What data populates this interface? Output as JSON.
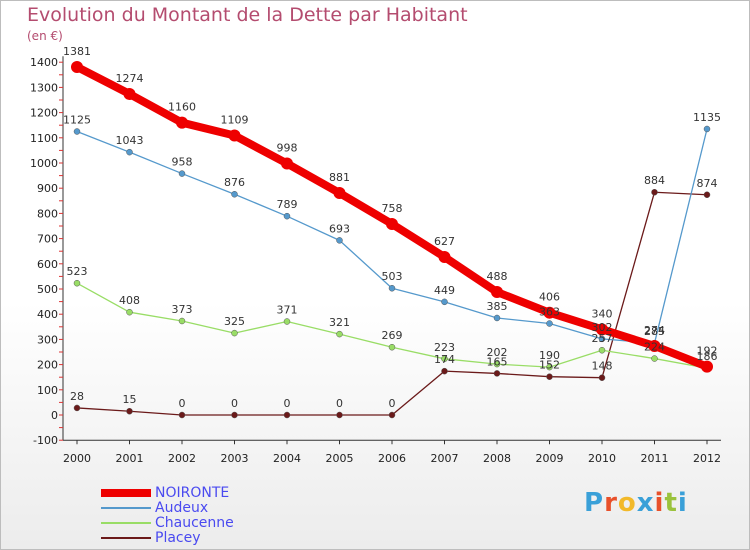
{
  "header": {
    "title": "Evolution du Montant de la Dette par Habitant",
    "unit": "(en €)"
  },
  "brand": {
    "letters": [
      "P",
      "r",
      "o",
      "x",
      "i",
      "t",
      "i"
    ],
    "colors": [
      "#3aa0d8",
      "#e8502a",
      "#f2b92a",
      "#3aa0d8",
      "#e8502a",
      "#9ac23c",
      "#3aa0d8"
    ]
  },
  "chart_data": {
    "type": "line",
    "title": "Evolution du Montant de la Dette par Habitant",
    "ylabel": "(en €)",
    "xlabel": "",
    "ylim": [
      -100,
      1400
    ],
    "y_ticks": [
      "-100",
      "0",
      "100",
      "200",
      "300",
      "400",
      "500",
      "600",
      "700",
      "800",
      "900",
      "1000",
      "1100",
      "1200",
      "1300",
      "1400"
    ],
    "y_tick_values": [
      -100,
      0,
      100,
      200,
      300,
      400,
      500,
      600,
      700,
      800,
      900,
      1000,
      1100,
      1200,
      1300,
      1400
    ],
    "categories": [
      "2000",
      "2001",
      "2002",
      "2003",
      "2004",
      "2005",
      "2006",
      "2007",
      "2008",
      "2009",
      "2010",
      "2011",
      "2012"
    ],
    "grid": false,
    "legend_position": "bottom-left",
    "series": [
      {
        "name": "Placey",
        "color": "#6b1a1a",
        "values": [
          28,
          15,
          0,
          0,
          0,
          0,
          0,
          174,
          165,
          152,
          148,
          884,
          874
        ]
      },
      {
        "name": "Chaucenne",
        "color": "#99dd66",
        "values": [
          523,
          408,
          373,
          325,
          371,
          321,
          269,
          223,
          202,
          190,
          257,
          224,
          186
        ]
      },
      {
        "name": "Audeux",
        "color": "#5599cc",
        "values": [
          1125,
          1043,
          958,
          876,
          789,
          693,
          503,
          449,
          385,
          363,
          302,
          285,
          1135
        ]
      },
      {
        "name": "NOIRONTE",
        "color": "#ee0000",
        "values": [
          1381,
          1274,
          1160,
          1109,
          998,
          881,
          758,
          627,
          488,
          406,
          340,
          274,
          192
        ]
      }
    ],
    "legend_order": [
      "NOIRONTE",
      "Audeux",
      "Chaucenne",
      "Placey"
    ]
  }
}
